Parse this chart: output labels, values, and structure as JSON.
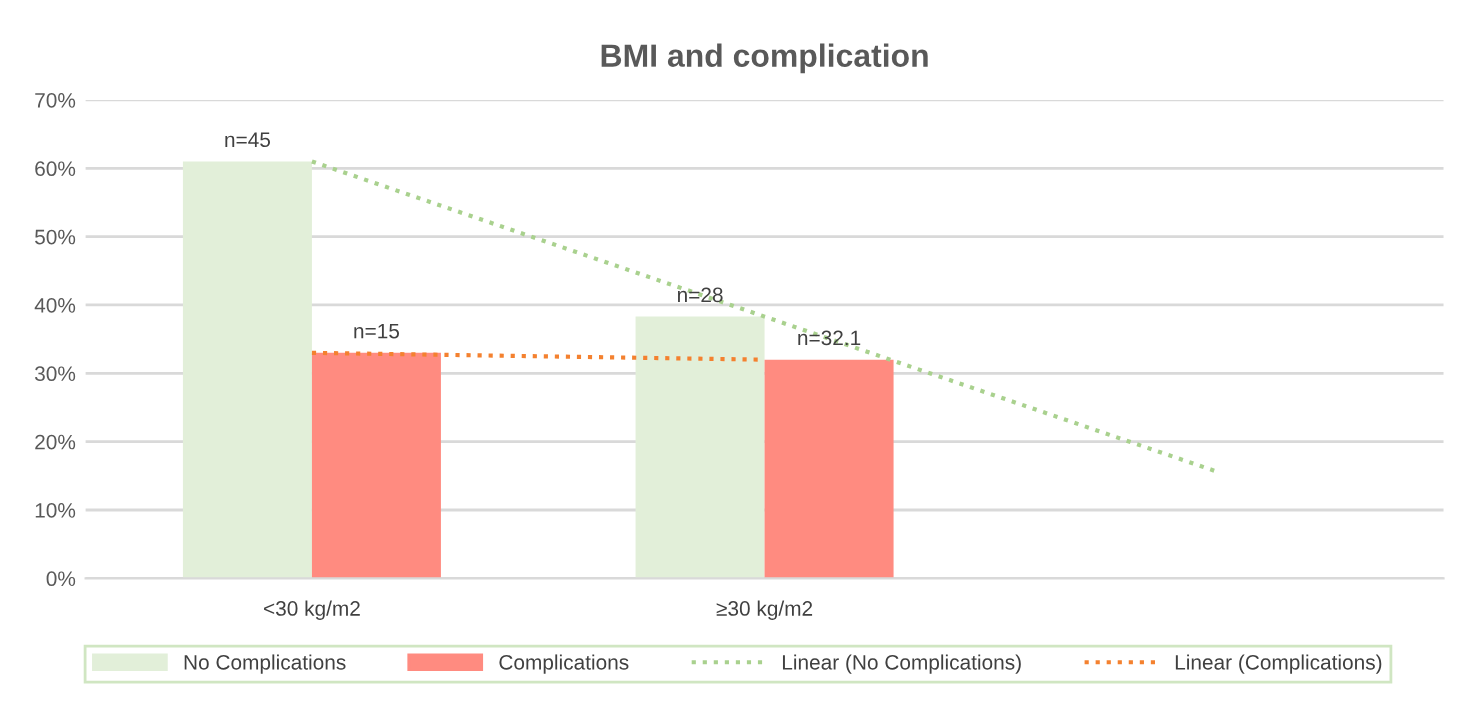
{
  "chart_data": {
    "type": "bar",
    "title": "BMI and complication",
    "categories": [
      "<30 kg/m2",
      "≥30 kg/m2",
      null
    ],
    "series": [
      {
        "name": "No Complications",
        "color": "#e2efd9",
        "values": [
          61,
          38.3,
          null
        ]
      },
      {
        "name": "Complications",
        "color": "#ff8b80",
        "values": [
          33,
          32,
          null
        ]
      },
      {
        "name": "Linear (No Complications)",
        "type": "line",
        "color": "#a9d18e",
        "line_style": "dotted",
        "values": [
          61,
          38.3,
          15.6
        ]
      },
      {
        "name": "Linear (Complications)",
        "type": "line",
        "color": "#f4812f",
        "line_style": "dotted",
        "values": [
          33,
          32,
          null
        ]
      }
    ],
    "annotations": [
      {
        "text": "n=45",
        "x": "<30 kg/m2",
        "y": 61
      },
      {
        "text": "n=15",
        "x": "<30 kg/m2",
        "y": 33
      },
      {
        "text": "n=28",
        "x": "≥30 kg/m2",
        "y": 38.3
      },
      {
        "text": "n=32.1",
        "x": "≥30 kg/m2",
        "y": 32
      }
    ],
    "ylim": [
      0,
      70
    ],
    "yticks": [
      {
        "value": 0,
        "label": "0%"
      },
      {
        "value": 10,
        "label": "10%"
      },
      {
        "value": 20,
        "label": "20%"
      },
      {
        "value": 30,
        "label": "30%"
      },
      {
        "value": 40,
        "label": "40%"
      },
      {
        "value": 50,
        "label": "50%"
      },
      {
        "value": 60,
        "label": "60%"
      },
      {
        "value": 70,
        "label": "70%"
      }
    ],
    "grid": "y",
    "legend": "bottom"
  }
}
